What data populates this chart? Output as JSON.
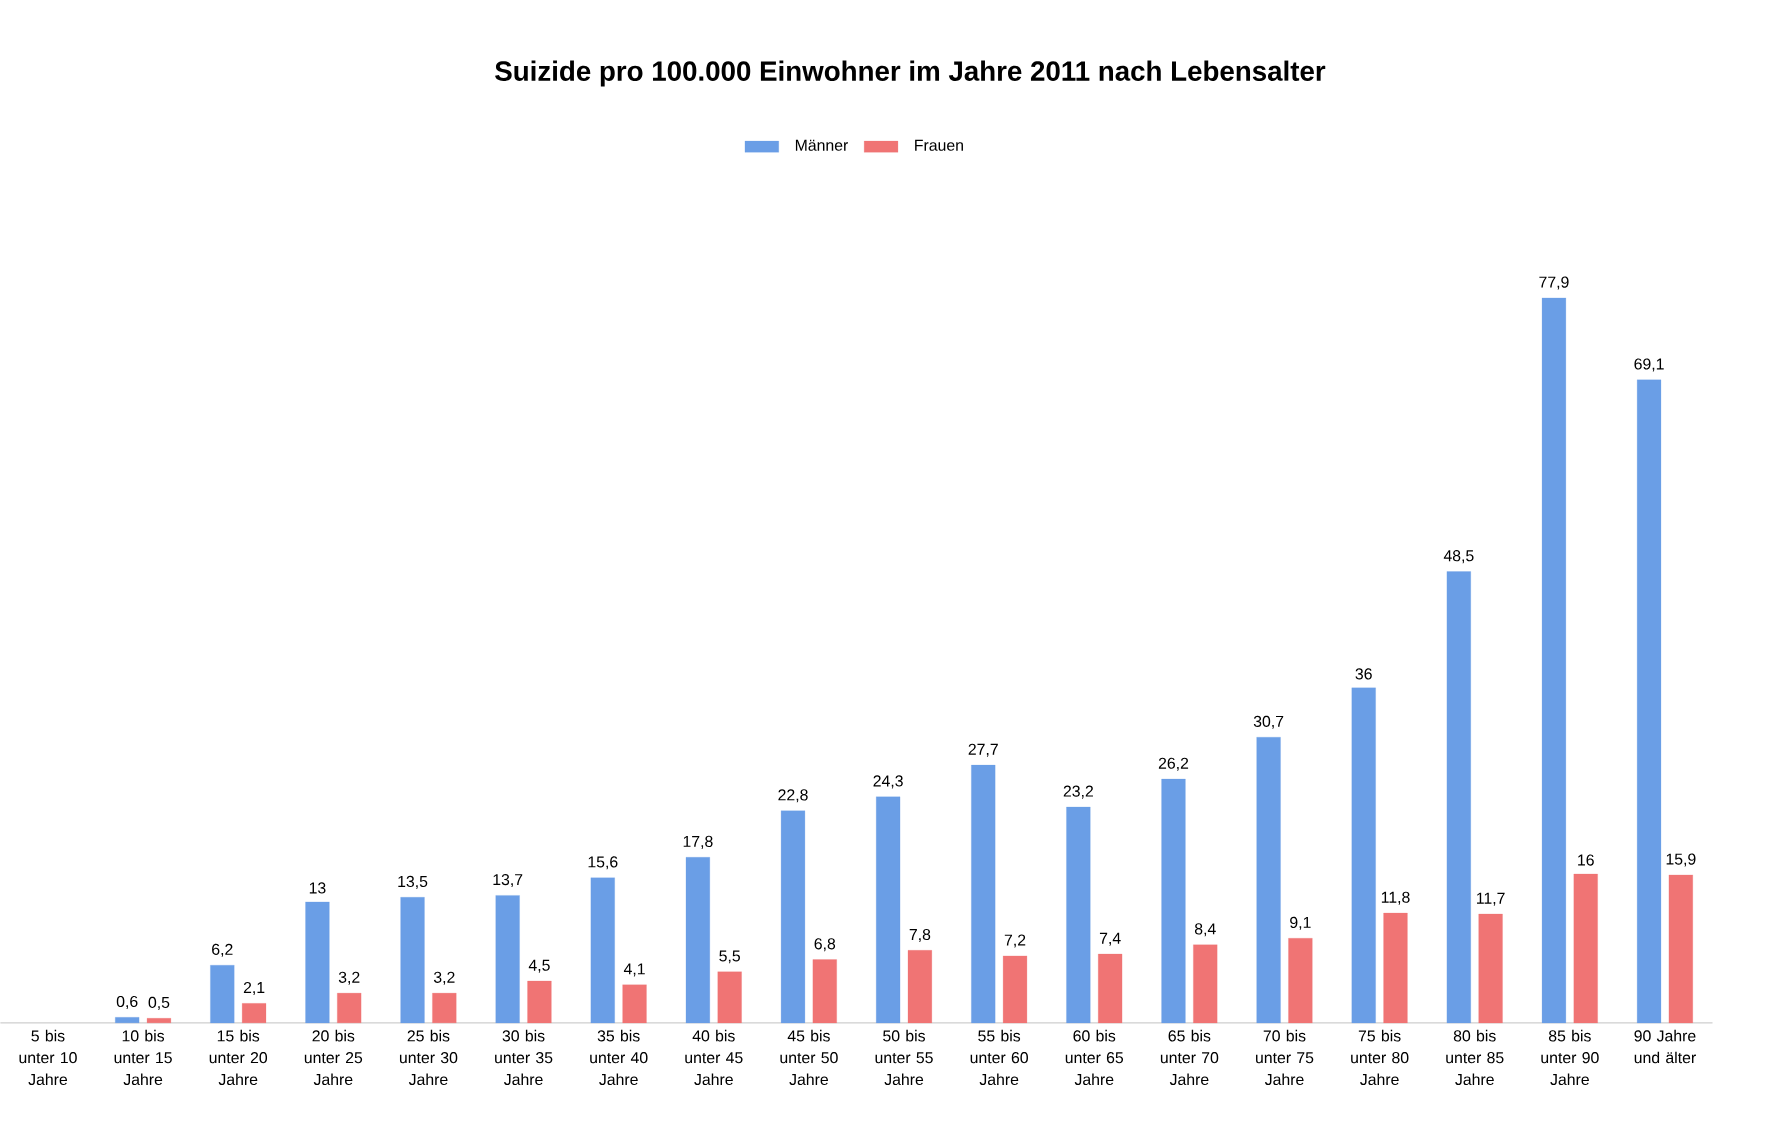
{
  "chart_data": {
    "type": "bar",
    "title": "Suizide pro 100.000 Einwohner im Jahre 2011 nach Lebensalter",
    "categories": [
      "5 bis unter 10 Jahre",
      "10 bis unter 15 Jahre",
      "15 bis unter 20 Jahre",
      "20 bis unter 25 Jahre",
      "25 bis unter 30 Jahre",
      "30 bis unter 35 Jahre",
      "35 bis unter 40 Jahre",
      "40 bis unter 45 Jahre",
      "45 bis unter 50 Jahre",
      "50 bis unter 55 Jahre",
      "55 bis unter 60 Jahre",
      "60 bis unter 65 Jahre",
      "65 bis unter 70 Jahre",
      "70 bis unter 75 Jahre",
      "75 bis unter 80 Jahre",
      "80 bis unter 85 Jahre",
      "85 bis unter 90 Jahre",
      "90 Jahre und älter"
    ],
    "series": [
      {
        "name": "Männer",
        "color": "#6a9ee6",
        "values": [
          null,
          0.6,
          6.2,
          13,
          13.5,
          13.7,
          15.6,
          17.8,
          22.8,
          24.3,
          27.7,
          23.2,
          26.2,
          30.7,
          36,
          48.5,
          77.9,
          69.1
        ],
        "value_labels": [
          null,
          "0,6",
          "6,2",
          "13",
          "13,5",
          "13,7",
          "15,6",
          "17,8",
          "22,8",
          "24,3",
          "27,7",
          "23,2",
          "26,2",
          "30,7",
          "36",
          "48,5",
          "77,9",
          "69,1"
        ]
      },
      {
        "name": "Frauen",
        "color": "#f07474",
        "values": [
          null,
          0.5,
          2.1,
          3.2,
          3.2,
          4.5,
          4.1,
          5.5,
          6.8,
          7.8,
          7.2,
          7.4,
          8.4,
          9.1,
          11.8,
          11.7,
          16,
          15.9
        ],
        "value_labels": [
          null,
          "0,5",
          "2,1",
          "3,2",
          "3,2",
          "4,5",
          "4,1",
          "5,5",
          "6,8",
          "7,8",
          "7,2",
          "7,4",
          "8,4",
          "9,1",
          "11,8",
          "11,7",
          "16",
          "15,9"
        ]
      }
    ],
    "legend": "top"
  }
}
